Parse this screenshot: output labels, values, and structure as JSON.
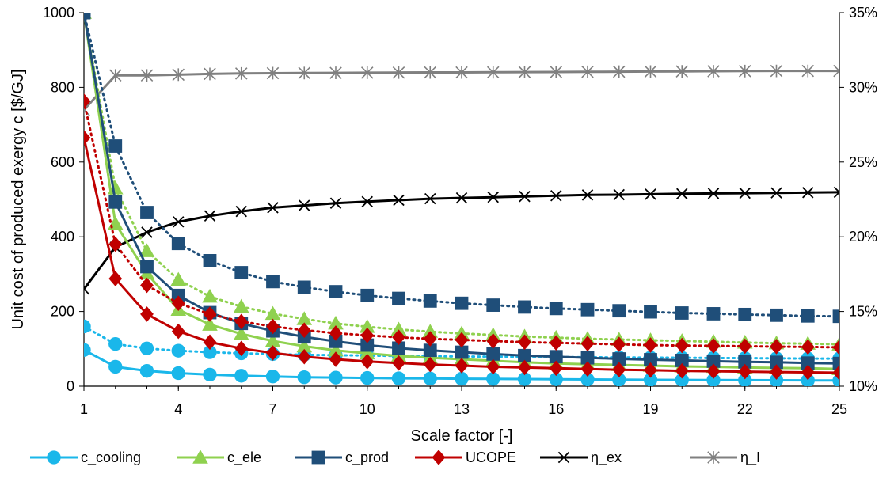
{
  "chart_data": {
    "type": "line",
    "xlabel": "Scale factor [-]",
    "ylabel": "Unit cost of produced exergy c [$/GJ]",
    "xlim": [
      1,
      25
    ],
    "ylim": [
      0,
      1000
    ],
    "y2lim": [
      10,
      35
    ],
    "x_ticks": [
      "1",
      "4",
      "7",
      "10",
      "13",
      "16",
      "19",
      "22",
      "25"
    ],
    "y_ticks": [
      "0",
      "200",
      "400",
      "600",
      "800",
      "1000"
    ],
    "y2_ticks": [
      "10%",
      "15%",
      "20%",
      "25%",
      "30%",
      "35%"
    ],
    "grid": false,
    "legend_position": "bottom",
    "x": [
      1,
      2,
      3,
      4,
      5,
      6,
      7,
      8,
      9,
      10,
      11,
      12,
      13,
      14,
      15,
      16,
      17,
      18,
      19,
      20,
      21,
      22,
      23,
      24,
      25
    ],
    "series": [
      {
        "name": "c_cooling",
        "axis": "left",
        "color": "#1ab7ea",
        "marker": "circle",
        "style": "solid",
        "values": [
          97,
          52,
          41,
          35,
          31,
          28,
          26,
          24,
          23,
          22,
          21,
          20.5,
          20,
          19.5,
          19,
          18.5,
          18,
          17.5,
          17,
          16.7,
          16.4,
          16.1,
          15.8,
          15.5,
          15.2
        ]
      },
      {
        "name": "c_cooling",
        "axis": "left",
        "color": "#1ab7ea",
        "marker": "circle",
        "style": "dotted",
        "values": [
          160,
          113,
          101,
          95,
          91,
          88,
          86,
          84,
          83,
          82,
          81,
          80,
          79.5,
          79,
          78.5,
          78,
          77.5,
          77,
          76.5,
          76,
          75.5,
          75,
          74.5,
          74,
          74
        ]
      },
      {
        "name": "c_ele",
        "axis": "left",
        "color": "#8fd14f",
        "marker": "triangle",
        "style": "solid",
        "values": [
          1000,
          435,
          302,
          205,
          165,
          140,
          121,
          107,
          96,
          88,
          81,
          76,
          72,
          68,
          64,
          61,
          59,
          57,
          55,
          53,
          52,
          50,
          49,
          48,
          46
        ]
      },
      {
        "name": "c_ele",
        "axis": "left",
        "color": "#8fd14f",
        "marker": "triangle",
        "style": "dotted",
        "values": [
          1000,
          530,
          362,
          285,
          240,
          213,
          194,
          180,
          168,
          159,
          152,
          146,
          141,
          137,
          133,
          130,
          127,
          125,
          123,
          121,
          119,
          117,
          115,
          114,
          112
        ]
      },
      {
        "name": "c_prod",
        "axis": "left",
        "color": "#1f4e79",
        "marker": "square",
        "style": "solid",
        "values": [
          1000,
          493,
          320,
          243,
          197,
          168,
          148,
          132,
          120,
          110,
          102,
          96,
          91,
          86,
          82,
          79,
          76,
          73,
          71,
          69,
          67,
          65,
          64,
          62,
          61
        ]
      },
      {
        "name": "c_prod",
        "axis": "left",
        "color": "#1f4e79",
        "marker": "square",
        "style": "dotted",
        "values": [
          1000,
          643,
          465,
          382,
          336,
          304,
          280,
          265,
          253,
          243,
          235,
          228,
          222,
          217,
          212,
          208,
          205,
          202,
          199,
          196,
          194,
          192,
          190,
          188,
          187
        ]
      },
      {
        "name": "UCOPE",
        "axis": "left",
        "color": "#c00000",
        "marker": "diamond",
        "style": "solid",
        "values": [
          665,
          288,
          193,
          147,
          118,
          101,
          89,
          79,
          72,
          66,
          62,
          58,
          55,
          52,
          50,
          48,
          46,
          44,
          43,
          41,
          40,
          39,
          38,
          37,
          36
        ]
      },
      {
        "name": "UCOPE",
        "axis": "left",
        "color": "#c00000",
        "marker": "diamond",
        "style": "dotted",
        "values": [
          763,
          380,
          270,
          222,
          193,
          173,
          160,
          150,
          142,
          136,
          131,
          127,
          124,
          121,
          118,
          116,
          114,
          112,
          110,
          109,
          108,
          107,
          106,
          105,
          104
        ]
      },
      {
        "name": "η_ex",
        "axis": "right",
        "color": "#000000",
        "marker": "x",
        "style": "solid",
        "values": [
          16.5,
          19.3,
          20.3,
          21.0,
          21.4,
          21.7,
          21.95,
          22.1,
          22.25,
          22.35,
          22.45,
          22.55,
          22.6,
          22.65,
          22.7,
          22.75,
          22.8,
          22.82,
          22.85,
          22.88,
          22.9,
          22.92,
          22.94,
          22.96,
          22.98
        ]
      },
      {
        "name": "η_I",
        "axis": "right",
        "color": "#808080",
        "marker": "asterisk",
        "style": "solid",
        "values": [
          28.5,
          30.8,
          30.8,
          30.85,
          30.9,
          30.93,
          30.95,
          30.96,
          30.97,
          30.98,
          30.99,
          31.0,
          31.0,
          31.01,
          31.02,
          31.03,
          31.04,
          31.05,
          31.06,
          31.07,
          31.08,
          31.09,
          31.1,
          31.1,
          31.1
        ]
      }
    ],
    "legend": [
      {
        "label": "c_cooling",
        "color": "#1ab7ea",
        "marker": "circle"
      },
      {
        "label": "c_ele",
        "color": "#8fd14f",
        "marker": "triangle"
      },
      {
        "label": "c_prod",
        "color": "#1f4e79",
        "marker": "square"
      },
      {
        "label": "UCOPE",
        "color": "#c00000",
        "marker": "diamond"
      },
      {
        "label": "η_ex",
        "color": "#000000",
        "marker": "x"
      },
      {
        "label": "η_I",
        "color": "#808080",
        "marker": "asterisk"
      }
    ]
  }
}
